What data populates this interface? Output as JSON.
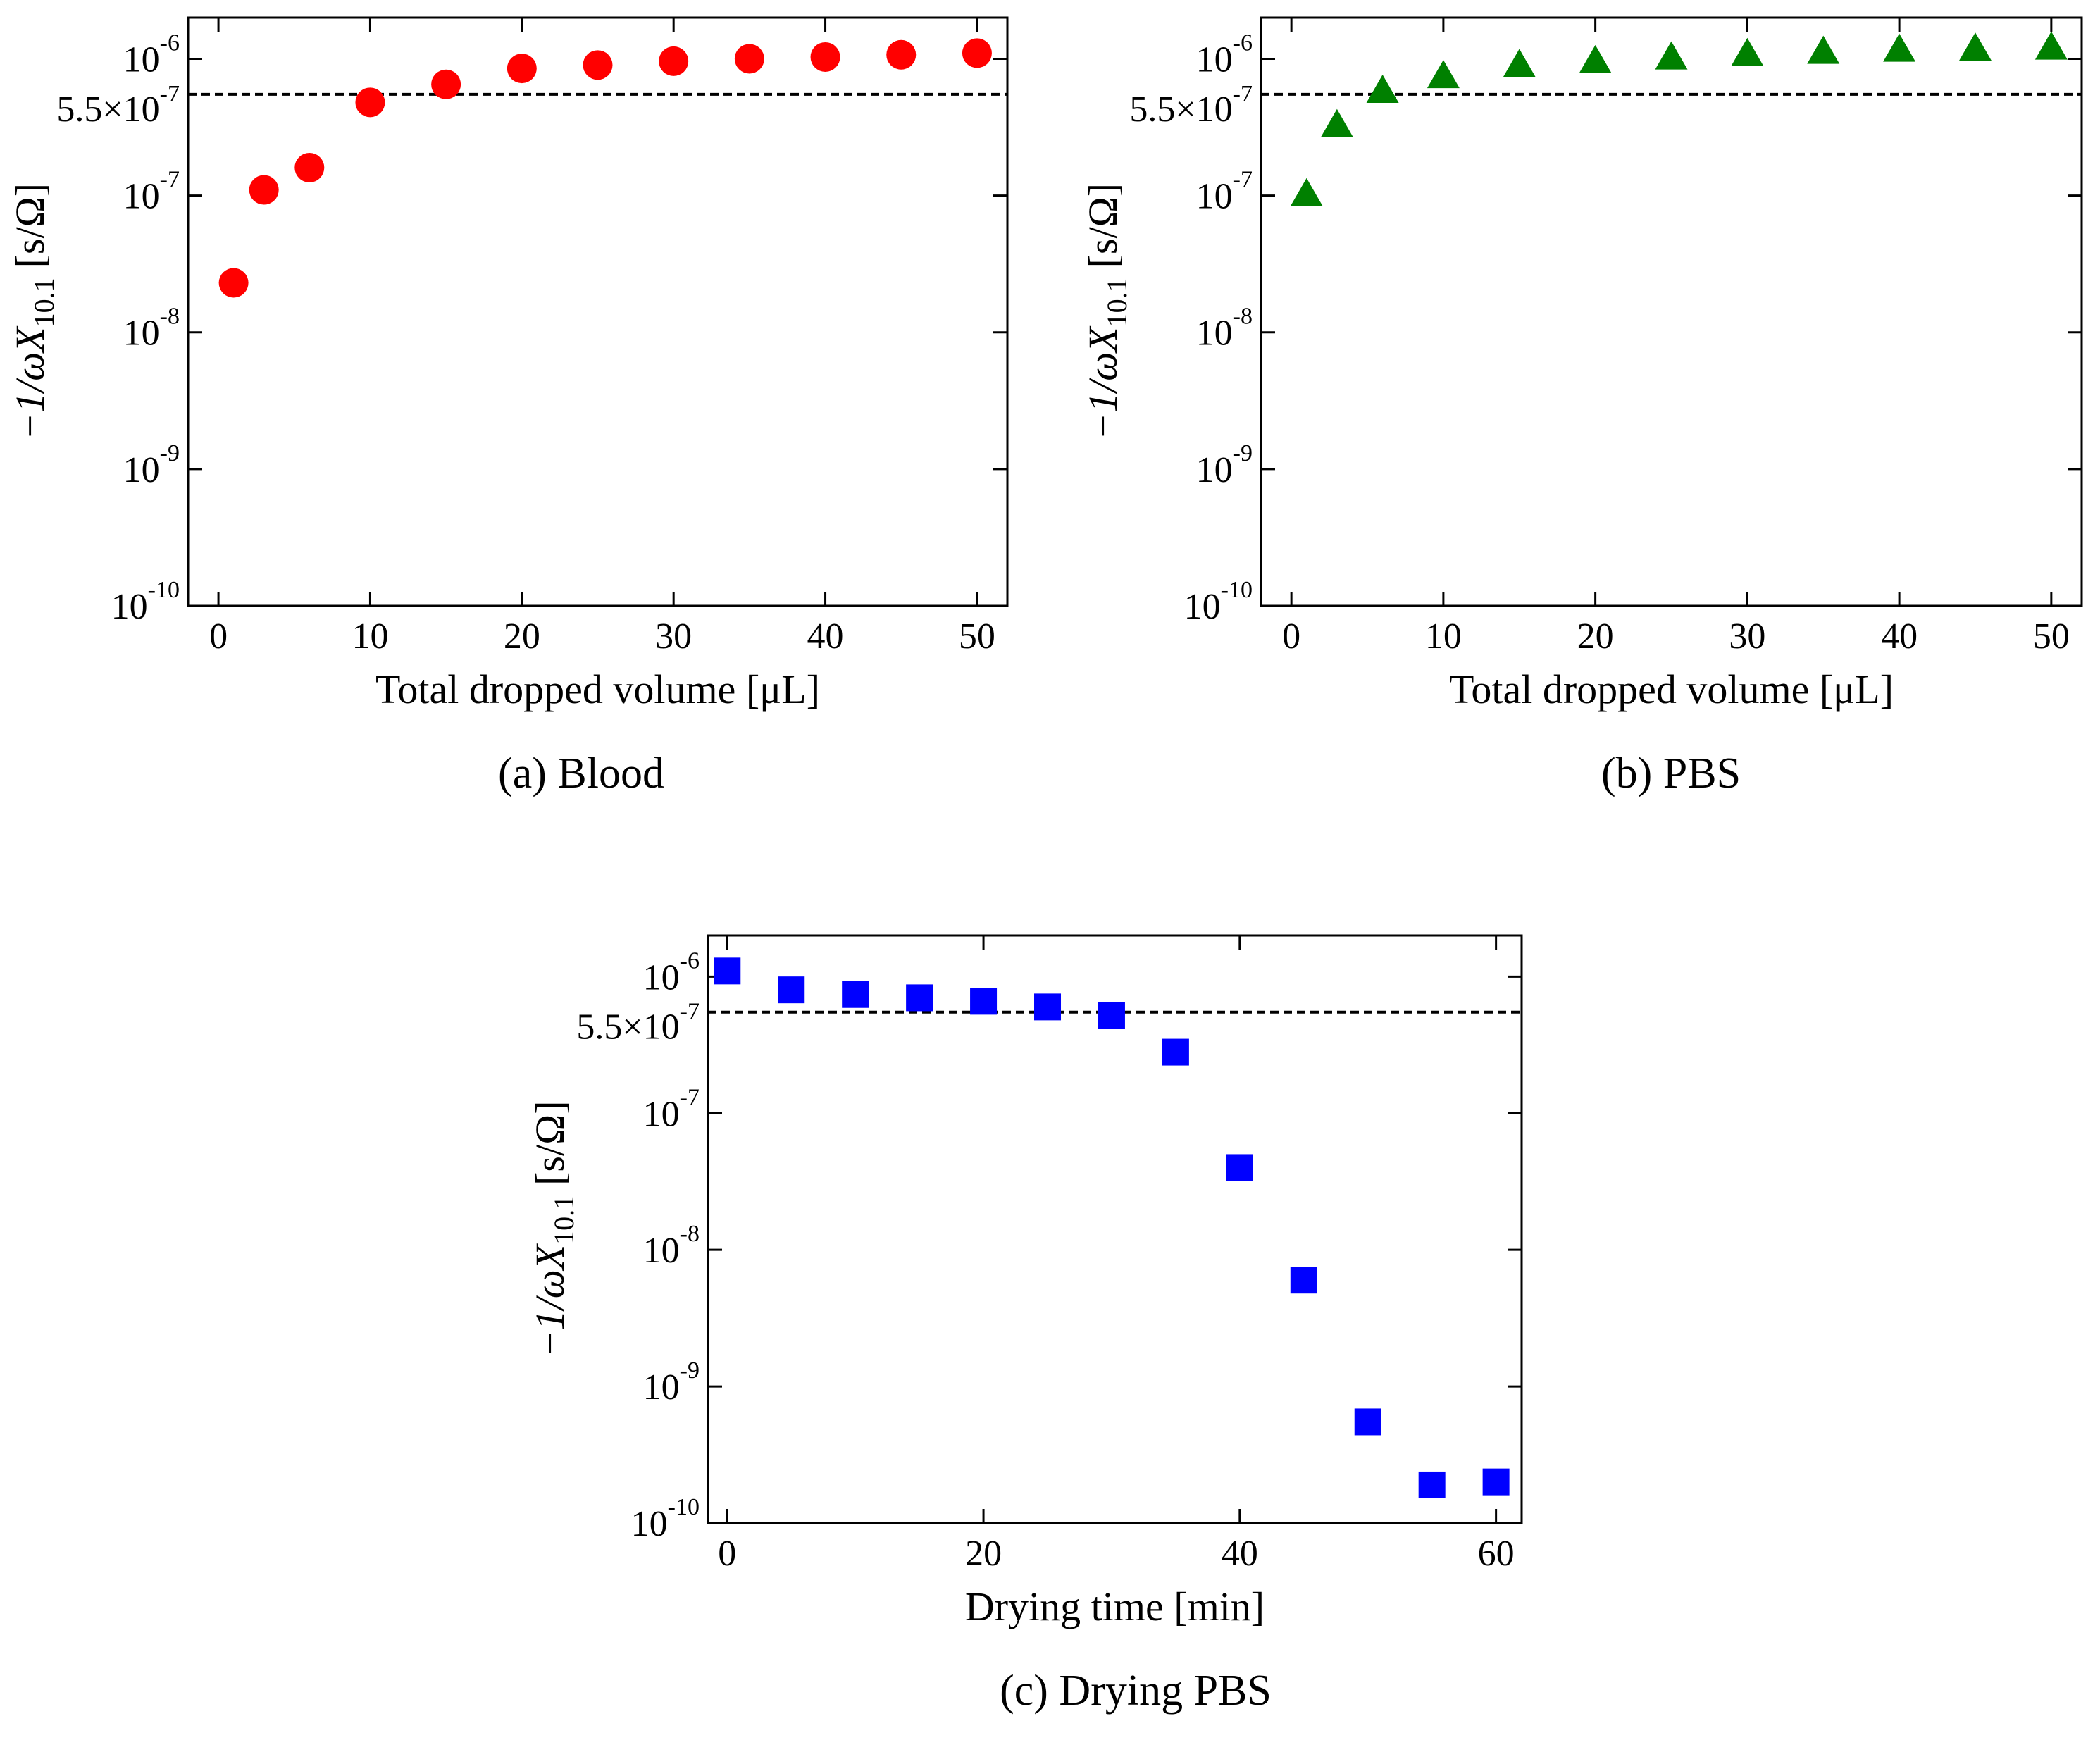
{
  "chart_data": [
    {
      "id": "a",
      "type": "scatter",
      "caption": "(a) Blood",
      "xlabel": "Total dropped volume [μL]",
      "ylabel": "−1/ωX",
      "ylabel_sub": "10.1",
      "ylabel_unit": "[s/Ω]",
      "yscale": "log",
      "xlim": [
        -2,
        52
      ],
      "ylim": [
        1e-10,
        2e-06
      ],
      "xticks": [
        0,
        10,
        20,
        30,
        40,
        50
      ],
      "xtick_labels": [
        "0",
        "10",
        "20",
        "30",
        "40",
        "50"
      ],
      "yticks": [
        1e-10,
        1e-09,
        1e-08,
        1e-07,
        1e-06
      ],
      "ytick_labels": [
        "10",
        "10",
        "10",
        "10",
        "10"
      ],
      "ytick_exponents": [
        "-10",
        "-9",
        "-8",
        "-7",
        "-6"
      ],
      "reference_line": {
        "value": 5.5e-07,
        "label": "5.5×10",
        "label_exp": "-7"
      },
      "series": [
        {
          "name": "Blood",
          "marker": "circle",
          "color": "#ff0000",
          "x": [
            1,
            3,
            6,
            10,
            15,
            20,
            25,
            30,
            35,
            40,
            45,
            50
          ],
          "y": [
            2.3e-08,
            1.1e-07,
            1.6e-07,
            4.8e-07,
            6.5e-07,
            8.5e-07,
            9e-07,
            9.6e-07,
            1e-06,
            1.03e-06,
            1.07e-06,
            1.1e-06
          ]
        }
      ]
    },
    {
      "id": "b",
      "type": "scatter",
      "caption": "(b) PBS",
      "xlabel": "Total dropped volume [μL]",
      "ylabel": "−1/ωX",
      "ylabel_sub": "10.1",
      "ylabel_unit": "[s/Ω]",
      "yscale": "log",
      "xlim": [
        -2,
        52
      ],
      "ylim": [
        1e-10,
        2e-06
      ],
      "xticks": [
        0,
        10,
        20,
        30,
        40,
        50
      ],
      "xtick_labels": [
        "0",
        "10",
        "20",
        "30",
        "40",
        "50"
      ],
      "yticks": [
        1e-10,
        1e-09,
        1e-08,
        1e-07,
        1e-06
      ],
      "ytick_labels": [
        "10",
        "10",
        "10",
        "10",
        "10"
      ],
      "ytick_exponents": [
        "-10",
        "-9",
        "-8",
        "-7",
        "-6"
      ],
      "reference_line": {
        "value": 5.5e-07,
        "label": "5.5×10",
        "label_exp": "-7"
      },
      "series": [
        {
          "name": "PBS",
          "marker": "triangle",
          "color": "#008000",
          "x": [
            1,
            3,
            6,
            10,
            15,
            20,
            25,
            30,
            35,
            40,
            45,
            50
          ],
          "y": [
            1e-07,
            3.2e-07,
            5.7e-07,
            7.3e-07,
            8.8e-07,
            9.4e-07,
            1e-06,
            1.06e-06,
            1.1e-06,
            1.14e-06,
            1.16e-06,
            1.18e-06
          ]
        }
      ]
    },
    {
      "id": "c",
      "type": "scatter",
      "caption": "(c) Drying  PBS",
      "xlabel": "Drying time [min]",
      "ylabel": "−1/ωX",
      "ylabel_sub": "10.1",
      "ylabel_unit": "[s/Ω]",
      "yscale": "log",
      "xlim": [
        -1.5,
        62
      ],
      "ylim": [
        1e-10,
        2e-06
      ],
      "xticks": [
        0,
        20,
        40,
        60
      ],
      "xtick_labels": [
        "0",
        "20",
        "40",
        "60"
      ],
      "yticks": [
        1e-10,
        1e-09,
        1e-08,
        1e-07,
        1e-06
      ],
      "ytick_labels": [
        "10",
        "10",
        "10",
        "10",
        "10"
      ],
      "ytick_exponents": [
        "-10",
        "-9",
        "-8",
        "-7",
        "-6"
      ],
      "reference_line": {
        "value": 5.5e-07,
        "label": "5.5×10",
        "label_exp": "-7"
      },
      "series": [
        {
          "name": "Drying PBS",
          "marker": "square",
          "color": "#0000ff",
          "x": [
            0,
            5,
            10,
            15,
            20,
            25,
            30,
            35,
            40,
            45,
            50,
            55,
            60
          ],
          "y": [
            1.1e-06,
            8e-07,
            7.4e-07,
            7e-07,
            6.6e-07,
            6e-07,
            5.2e-07,
            2.8e-07,
            4e-08,
            6e-09,
            5.5e-10,
            1.9e-10,
            2e-10
          ]
        }
      ]
    }
  ]
}
